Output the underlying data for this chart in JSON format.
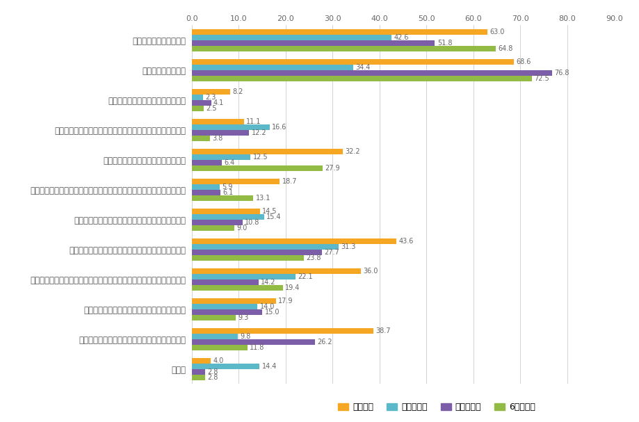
{
  "categories": [
    "社会に出て仕事がしたい",
    "経済的に自立したい",
    "大学より企業の研究環境の方がよい",
    "社会人入学制度を利用すればいつでも博士課程に進学できる",
    "大学教員などの仕事に魅力を感じない",
    "研究室環境が好ましくない（競争が激しい、ストレスが多い、過酷等）",
    "現在の成績では博士課程への編入学・進学は難しい",
    "博士課程に進学すると生活の経済的見通しが立たない",
    "博士課程の進学のコストに対して生涯賃金などのパフォーマンスが悪い",
    "博士論文に値する研究テーマが見つけられない",
    "博士課程に進学すると修了後の就職が心配である",
    "その他"
  ],
  "series": {
    "課程学生": [
      63.0,
      68.6,
      8.2,
      11.1,
      32.2,
      18.7,
      14.5,
      43.6,
      36.0,
      17.9,
      38.7,
      4.0
    ],
    "社会人学生": [
      42.6,
      34.4,
      2.3,
      16.6,
      12.5,
      5.9,
      15.4,
      31.3,
      22.1,
      14.0,
      9.8,
      14.4
    ],
    "外国人学生": [
      51.8,
      76.8,
      4.1,
      12.2,
      6.4,
      6.1,
      10.8,
      27.7,
      14.2,
      15.0,
      26.2,
      2.8
    ],
    "6年制学生": [
      64.8,
      72.5,
      2.5,
      3.8,
      27.9,
      13.1,
      9.0,
      23.8,
      19.4,
      9.3,
      11.8,
      2.8
    ]
  },
  "colors": {
    "課程学生": "#F5A623",
    "社会人学生": "#5BB8C8",
    "外国人学生": "#7B5EA7",
    "6年制学生": "#92BB46"
  },
  "series_order": [
    "課程学生",
    "社会人学生",
    "外国人学生",
    "6年制学生"
  ],
  "xlim": [
    0,
    90
  ],
  "xticks": [
    0.0,
    10.0,
    20.0,
    30.0,
    40.0,
    50.0,
    60.0,
    70.0,
    80.0,
    90.0
  ],
  "bar_height": 0.16,
  "label_fontsize": 7.0,
  "ylabel_fontsize": 8.5,
  "tick_fontsize": 8.0,
  "legend_fontsize": 9.0
}
